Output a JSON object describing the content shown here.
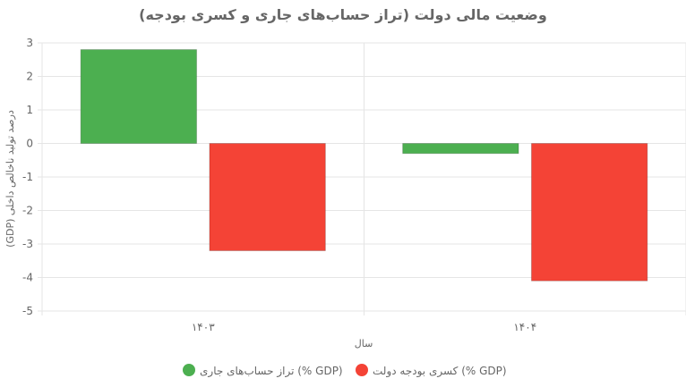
{
  "chart_data": {
    "type": "bar",
    "title": "وضعیت مالی دولت (تراز حساب‌های جاری و کسری بودجه)",
    "xlabel": "سال",
    "ylabel": "درصد تولید ناخالص داخلی (GDP)",
    "categories": [
      "۱۴۰۳",
      "۱۴۰۴"
    ],
    "series": [
      {
        "name": "تراز حساب‌های جاری (% GDP)",
        "values": [
          2.8,
          -0.3
        ],
        "color": "#4caf50"
      },
      {
        "name": "کسری بودجه دولت (% GDP)",
        "values": [
          -3.2,
          -4.1
        ],
        "color": "#f44336"
      }
    ],
    "ylim": [
      -5,
      3
    ],
    "yticks": [
      "3",
      "2",
      "1",
      "0",
      "-1",
      "-2",
      "-3",
      "-4",
      "-5"
    ],
    "grid": true,
    "legend_position": "bottom"
  }
}
